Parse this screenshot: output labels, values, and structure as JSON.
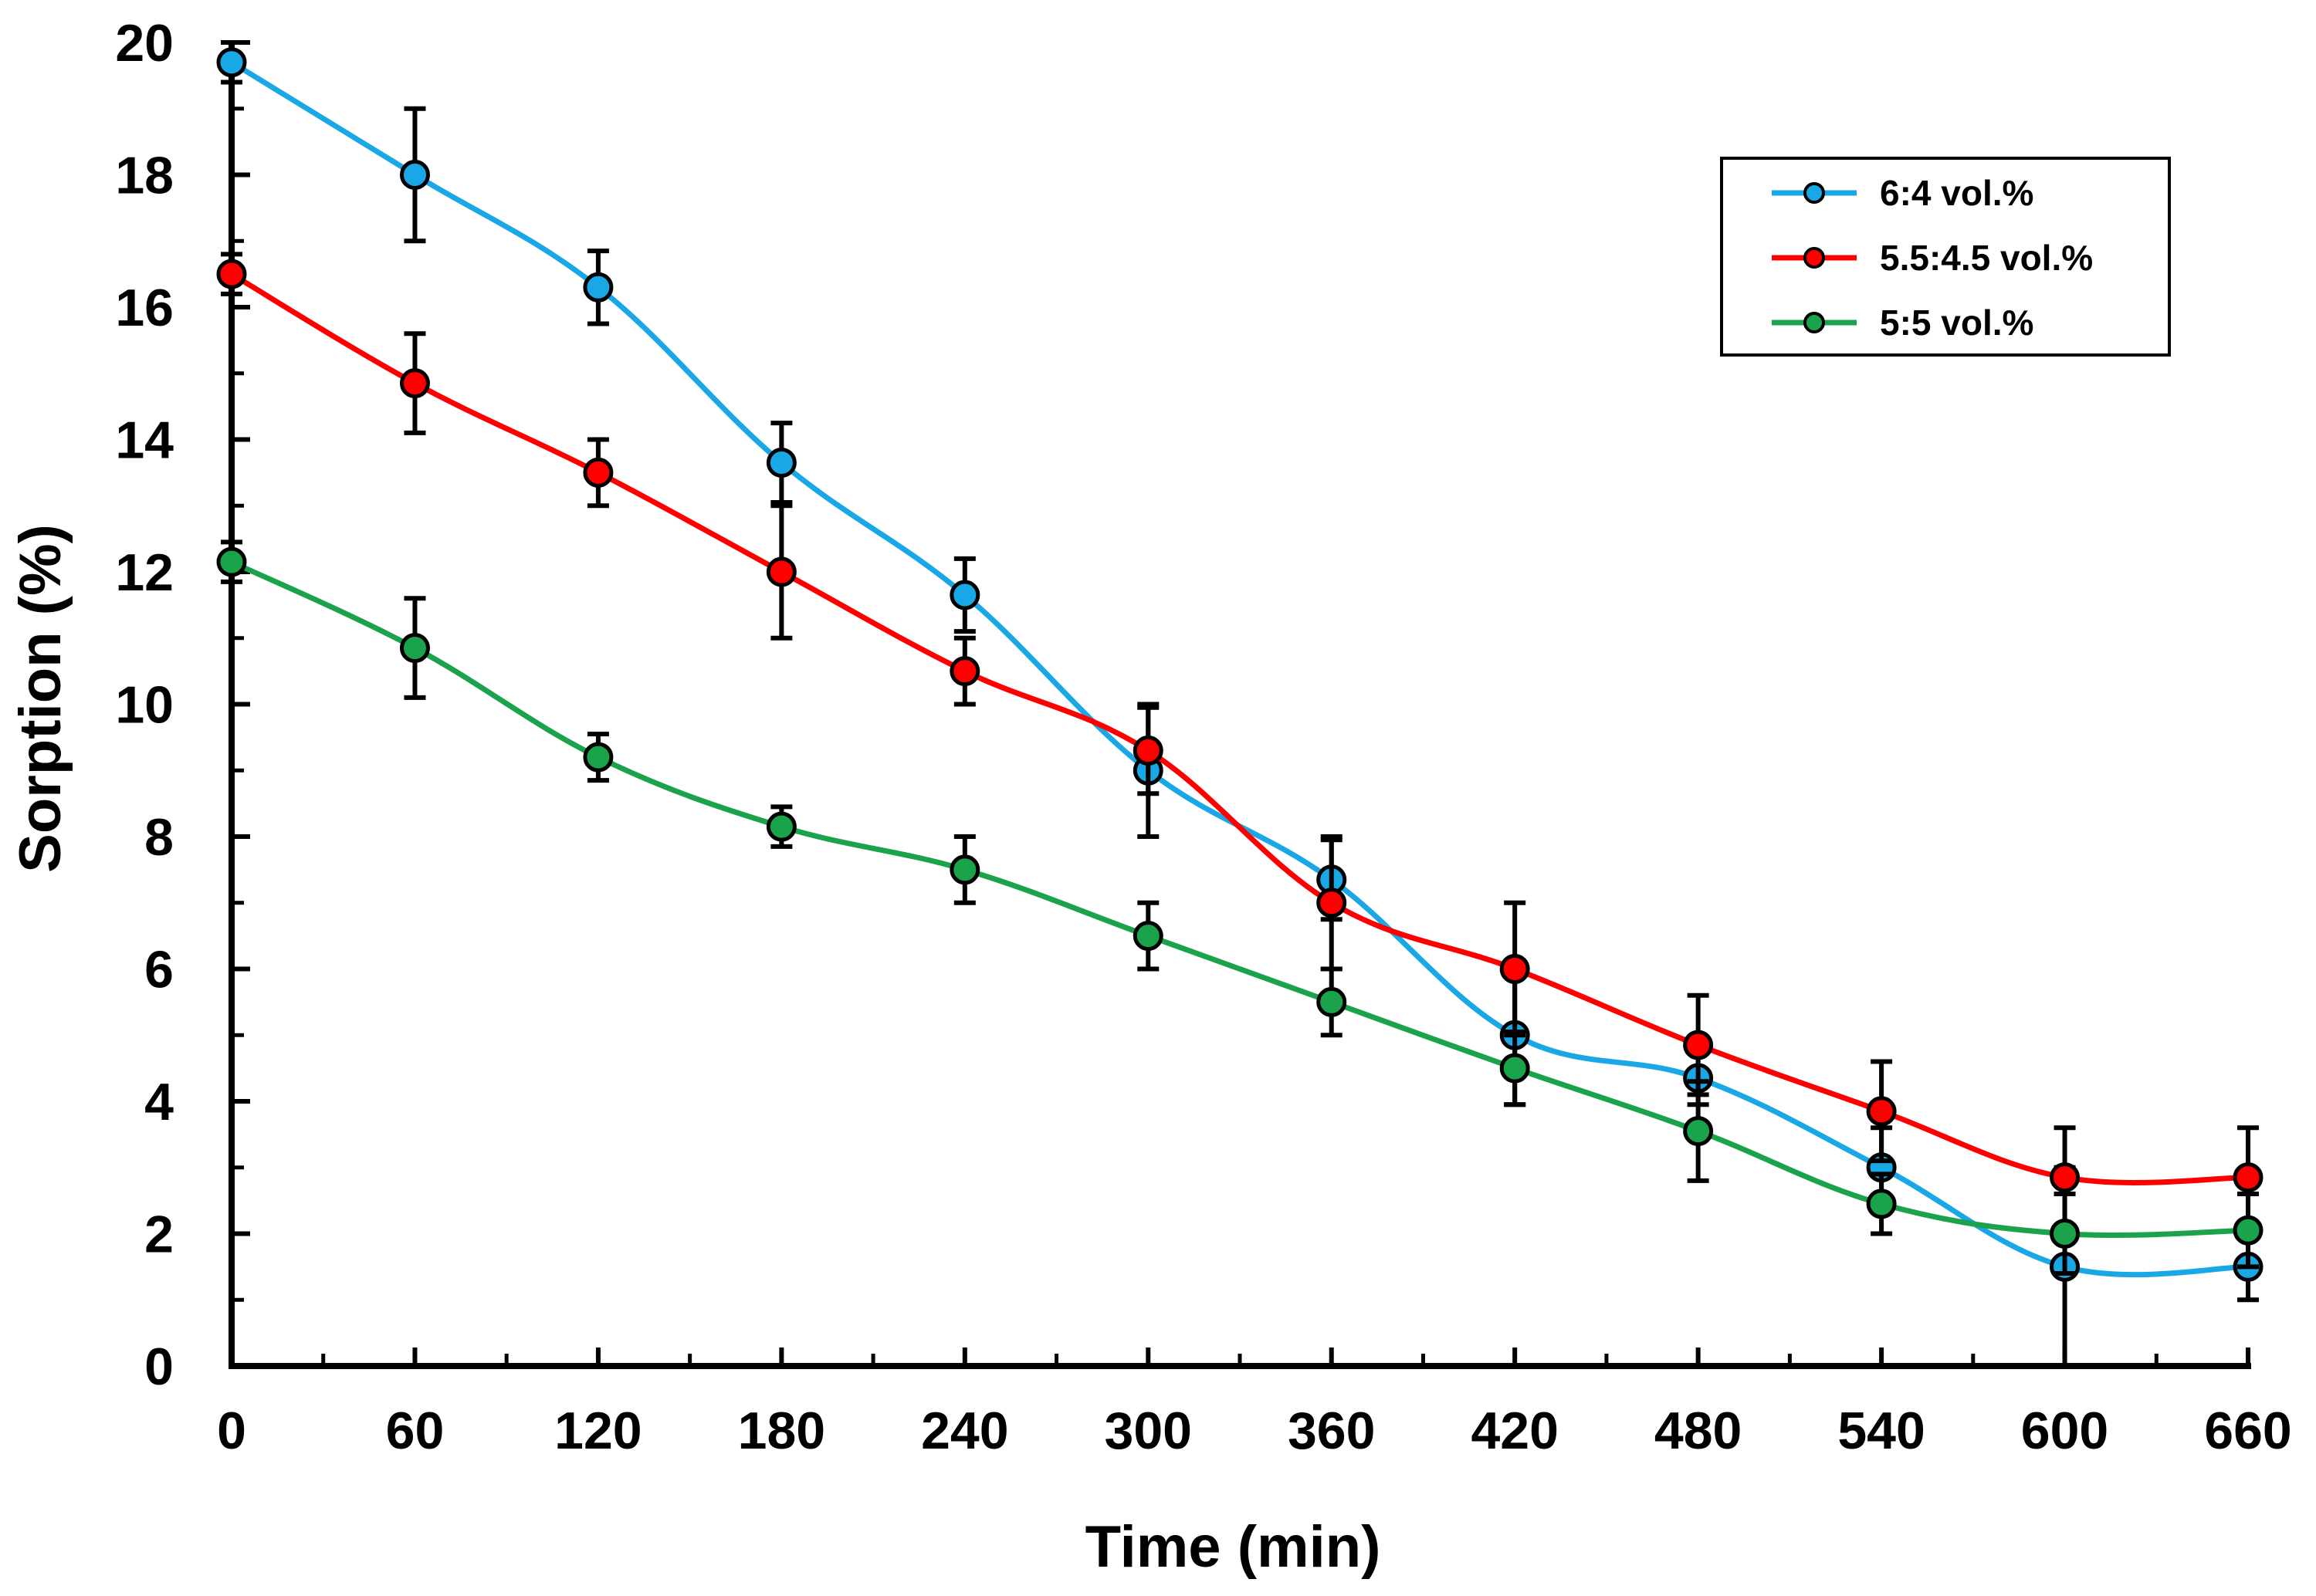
{
  "chart_data": {
    "type": "line",
    "title": "",
    "xlabel": "Time (min)",
    "ylabel": "Sorption (%)",
    "xlim": [
      0,
      660
    ],
    "ylim": [
      0,
      20
    ],
    "x_ticks": [
      "0",
      "60",
      "120",
      "180",
      "240",
      "300",
      "360",
      "420",
      "480",
      "540",
      "600",
      "660"
    ],
    "y_ticks": [
      "0",
      "2",
      "4",
      "6",
      "8",
      "10",
      "12",
      "14",
      "16",
      "18",
      "20"
    ],
    "x": [
      0,
      60,
      120,
      180,
      240,
      300,
      360,
      420,
      480,
      540,
      600,
      660
    ],
    "legend_position": "top-right",
    "grid": false,
    "series": [
      {
        "name": "6:4 vol.%",
        "color": "#1aa7e6",
        "values": [
          19.7,
          18.0,
          16.3,
          13.65,
          11.65,
          9.0,
          7.35,
          5.0,
          4.35,
          3.0,
          1.5,
          1.5
        ],
        "errors": [
          0.3,
          1.0,
          0.55,
          0.6,
          0.55,
          1.0,
          0.6,
          1.05,
          0.4,
          0.6,
          1.5,
          0.5
        ]
      },
      {
        "name": "5.5:4.5 vol.%",
        "color": "#ff0000",
        "values": [
          16.5,
          14.85,
          13.5,
          12.0,
          10.5,
          9.3,
          7.0,
          6.0,
          4.85,
          3.85,
          2.85,
          2.85
        ],
        "errors": [
          0.3,
          0.75,
          0.5,
          1.0,
          0.5,
          0.65,
          1.0,
          1.0,
          0.75,
          0.75,
          0.75,
          0.75
        ]
      },
      {
        "name": "5:5 vol.%",
        "color": "#1aa34a",
        "values": [
          12.15,
          10.85,
          9.2,
          8.15,
          7.5,
          6.5,
          5.5,
          4.5,
          3.55,
          2.45,
          2.0,
          2.05
        ],
        "errors": [
          0.3,
          0.75,
          0.35,
          0.3,
          0.5,
          0.5,
          0.5,
          0.55,
          0.75,
          0.45,
          0.6,
          0.55
        ]
      }
    ]
  }
}
